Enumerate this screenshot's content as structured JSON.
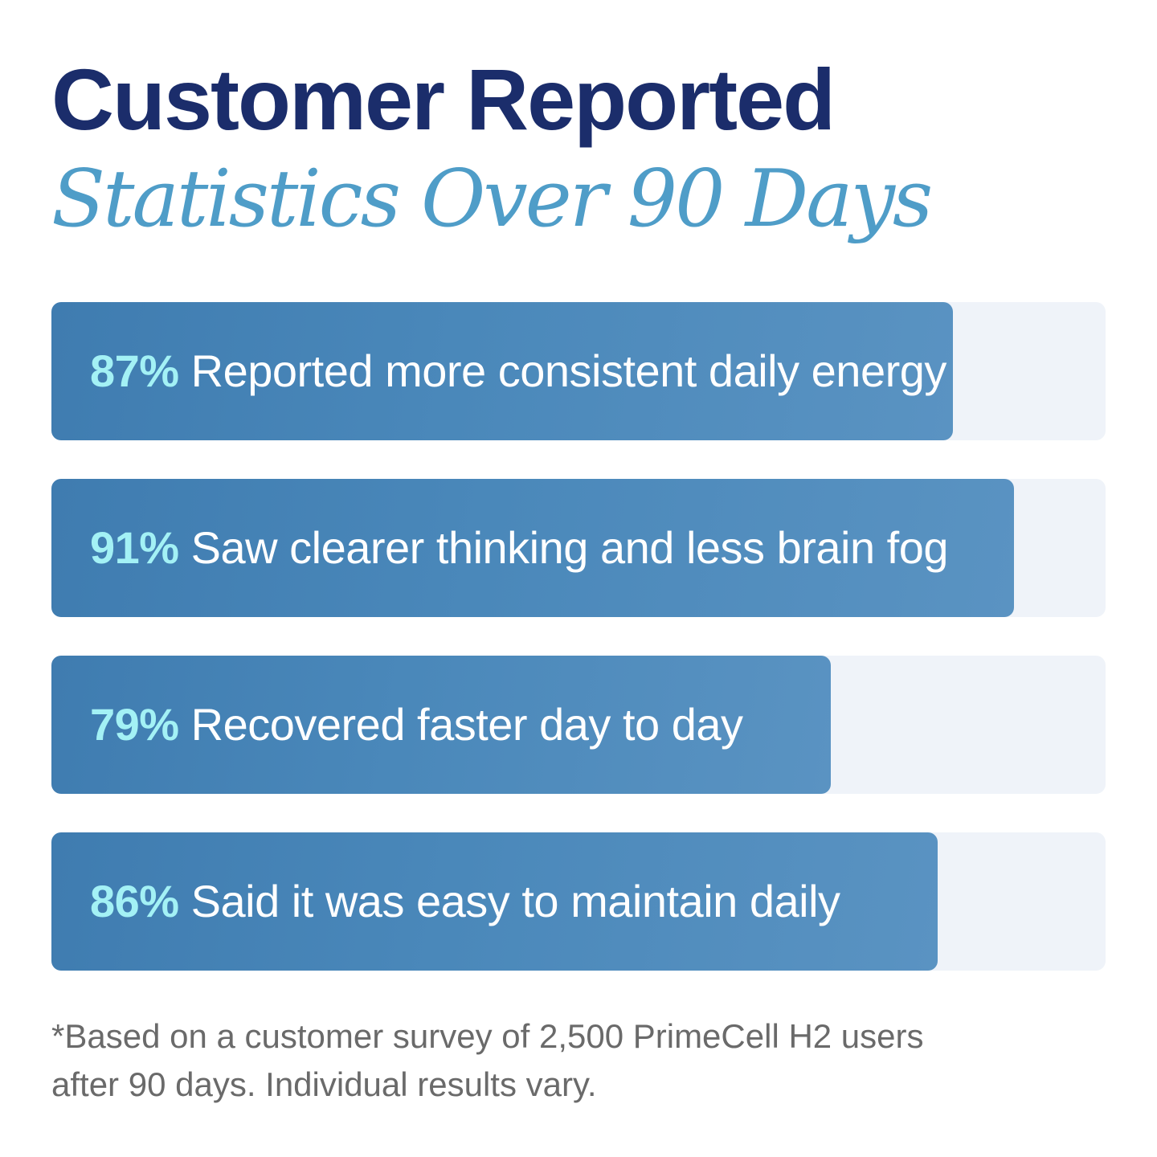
{
  "header": {
    "title_line_1": "Customer Reported",
    "title_line_2": "Statistics Over 90 Days"
  },
  "chart_data": {
    "type": "bar",
    "orientation": "horizontal",
    "xlim": [
      0,
      100
    ],
    "series": [
      {
        "values": [
          87,
          91,
          79,
          86
        ]
      }
    ],
    "bars": [
      {
        "value": 87,
        "percent_label": "87%",
        "label": "Reported more consistent daily energy"
      },
      {
        "value": 91,
        "percent_label": "91%",
        "label": "Saw clearer thinking and less brain fog"
      },
      {
        "value": 79,
        "percent_label": "79%",
        "label": "Recovered faster day to day"
      },
      {
        "value": 86,
        "percent_label": "86%",
        "label": "Said it was easy to maintain daily"
      }
    ],
    "colors": {
      "bar_fill": "#4a88ba",
      "bar_track": "#eff3f9",
      "percent_text": "#a3f1f5",
      "label_text": "#ffffff"
    },
    "grid": false
  },
  "footnote": {
    "line_1": "*Based on a customer survey of 2,500 PrimeCell H2 users",
    "line_2": "after 90 days. Individual results vary."
  }
}
